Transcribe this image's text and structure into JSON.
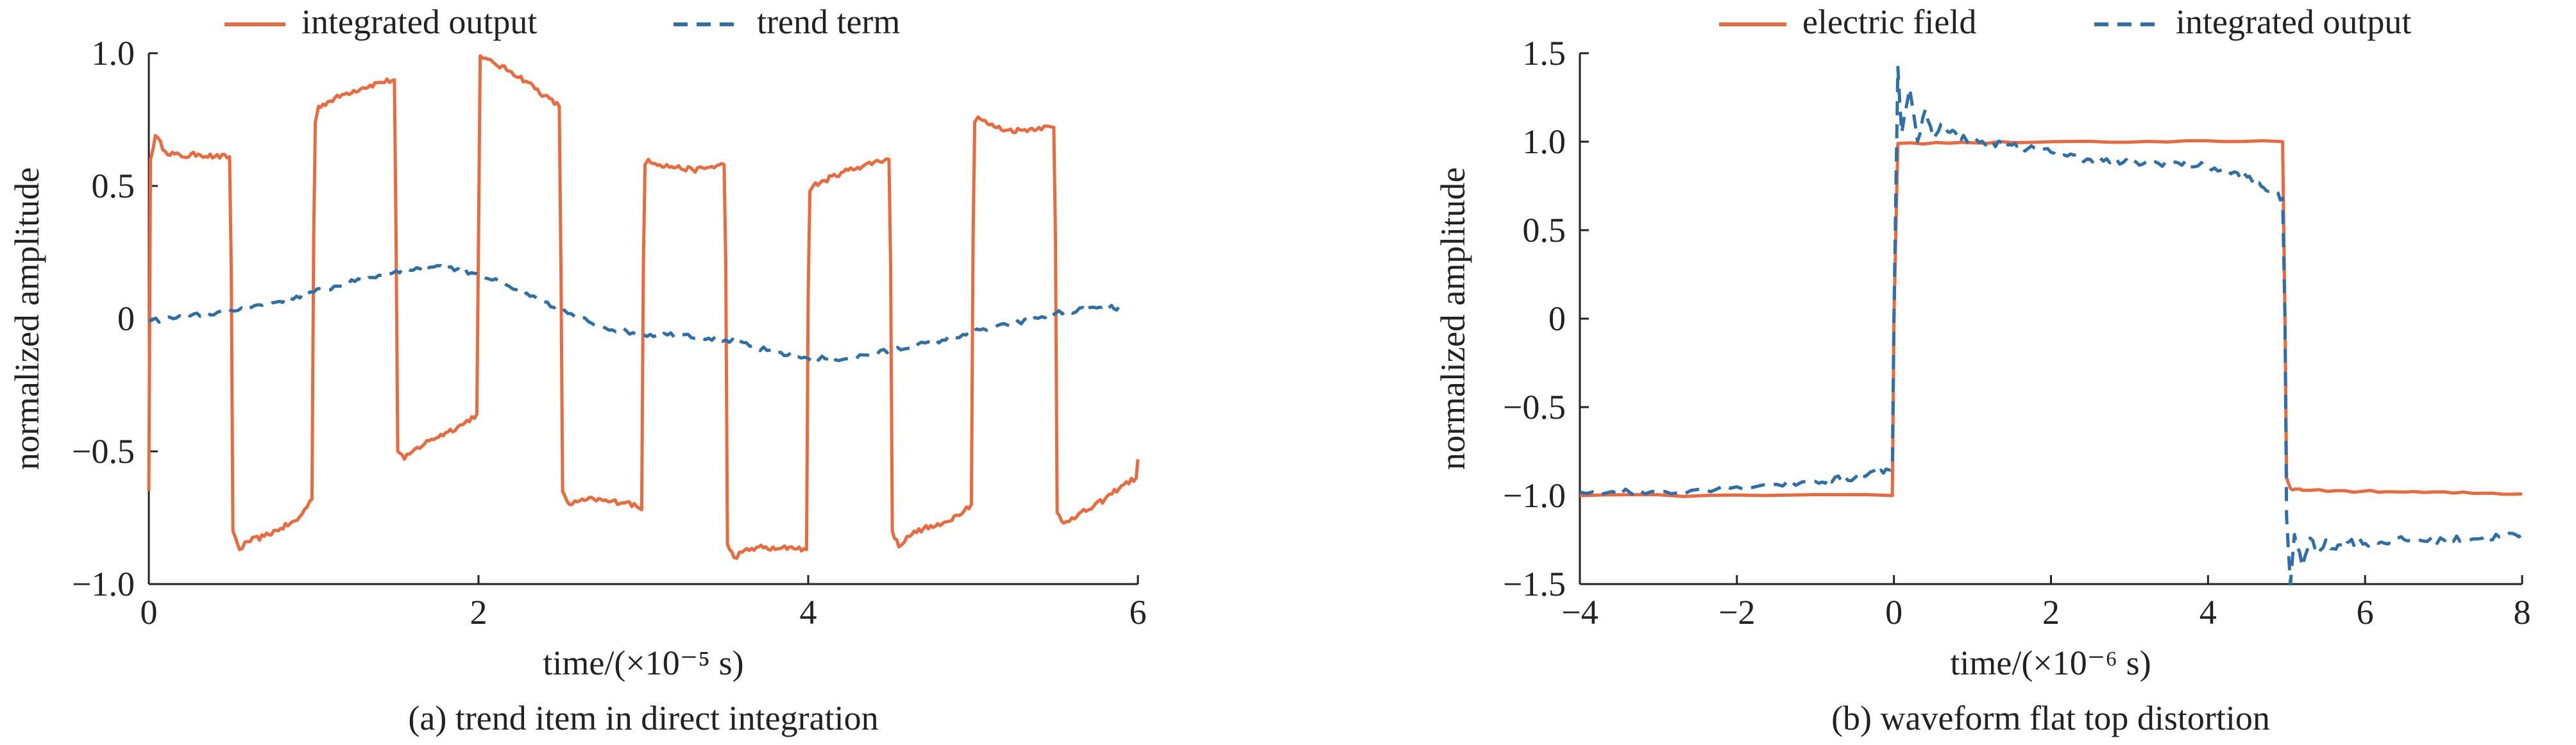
{
  "chart_data": [
    {
      "type": "line",
      "title": "(a) trend item in direct integration",
      "xlabel": "time/(×10⁻⁵ s)",
      "ylabel": "normalized amplitude",
      "xlim": [
        0,
        6
      ],
      "ylim": [
        -1.0,
        1.0
      ],
      "xticks": [
        0,
        2,
        4,
        6
      ],
      "xtick_labels": [
        "0",
        "2",
        "4",
        "6"
      ],
      "yticks": [
        1.0,
        0.5,
        0,
        -0.5,
        -1.0
      ],
      "ytick_labels": [
        "1.0",
        "0.5",
        "0",
        "−0.5",
        "−1.0"
      ],
      "grid": false,
      "legend": "top",
      "colors": {
        "integrated_output": "#ea6a3e",
        "trend_term": "#2d6fab"
      },
      "series": [
        {
          "name": "integrated output",
          "style": "solid",
          "x": [
            0,
            0.01,
            0.04,
            0.1,
            0.2,
            0.3,
            0.4,
            0.49,
            0.5,
            0.51,
            0.55,
            0.6,
            0.7,
            0.8,
            0.9,
            0.99,
            1.0,
            1.01,
            1.03,
            1.1,
            1.2,
            1.3,
            1.4,
            1.49,
            1.5,
            1.51,
            1.55,
            1.6,
            1.7,
            1.8,
            1.9,
            1.99,
            2.0,
            2.01,
            2.03,
            2.1,
            2.2,
            2.3,
            2.4,
            2.49,
            2.5,
            2.51,
            2.55,
            2.6,
            2.7,
            2.8,
            2.9,
            2.99,
            3.0,
            3.01,
            3.03,
            3.1,
            3.2,
            3.3,
            3.4,
            3.49,
            3.5,
            3.51,
            3.55,
            3.6,
            3.7,
            3.8,
            3.9,
            3.99,
            4.0,
            4.01,
            4.03,
            4.1,
            4.2,
            4.3,
            4.4,
            4.49,
            4.5,
            4.51,
            4.55,
            4.6,
            4.7,
            4.8,
            4.9,
            4.99,
            5.0,
            5.01,
            5.03,
            5.1,
            5.2,
            5.3,
            5.4,
            5.49,
            5.5,
            5.51,
            5.55,
            5.6,
            5.7,
            5.8,
            5.9,
            5.99,
            6.0
          ],
          "y": [
            -0.65,
            0.6,
            0.69,
            0.63,
            0.61,
            0.62,
            0.61,
            0.61,
            0.2,
            -0.8,
            -0.87,
            -0.84,
            -0.82,
            -0.79,
            -0.76,
            -0.68,
            0.3,
            0.74,
            0.8,
            0.82,
            0.85,
            0.87,
            0.89,
            0.9,
            0.3,
            -0.5,
            -0.53,
            -0.5,
            -0.46,
            -0.43,
            -0.4,
            -0.36,
            0.3,
            0.99,
            0.98,
            0.96,
            0.93,
            0.89,
            0.84,
            0.8,
            0.2,
            -0.65,
            -0.7,
            -0.69,
            -0.68,
            -0.69,
            -0.69,
            -0.72,
            0.2,
            0.58,
            0.6,
            0.58,
            0.57,
            0.56,
            0.57,
            0.58,
            0.2,
            -0.85,
            -0.9,
            -0.88,
            -0.86,
            -0.87,
            -0.86,
            -0.87,
            0.1,
            0.48,
            0.5,
            0.52,
            0.55,
            0.57,
            0.59,
            0.6,
            0.2,
            -0.8,
            -0.86,
            -0.82,
            -0.79,
            -0.78,
            -0.74,
            -0.7,
            0.3,
            0.74,
            0.76,
            0.73,
            0.71,
            0.71,
            0.72,
            0.72,
            0.3,
            -0.73,
            -0.77,
            -0.75,
            -0.72,
            -0.68,
            -0.63,
            -0.6,
            -0.53
          ]
        },
        {
          "name": "trend term",
          "style": "dashed",
          "x": [
            0,
            0.25,
            0.5,
            0.75,
            1.0,
            1.25,
            1.5,
            1.75,
            2.0,
            2.25,
            2.5,
            2.75,
            3.0,
            3.25,
            3.5,
            3.75,
            4.0,
            4.25,
            4.5,
            4.75,
            5.0,
            5.25,
            5.5,
            5.75,
            5.9
          ],
          "y": [
            -0.01,
            0.01,
            0.03,
            0.06,
            0.1,
            0.14,
            0.18,
            0.2,
            0.17,
            0.1,
            0.03,
            -0.03,
            -0.06,
            -0.06,
            -0.08,
            -0.12,
            -0.15,
            -0.15,
            -0.12,
            -0.09,
            -0.05,
            -0.02,
            0.02,
            0.04,
            0.04
          ]
        }
      ]
    },
    {
      "type": "line",
      "title": "(b) waveform flat top distortion",
      "xlabel": "time/(×10⁻⁶ s)",
      "ylabel": "normalized amplitude",
      "xlim": [
        -4,
        8
      ],
      "ylim": [
        -1.5,
        1.5
      ],
      "xticks": [
        -4,
        -2,
        0,
        2,
        4,
        6,
        8
      ],
      "xtick_labels": [
        "−4",
        "−2",
        "0",
        "2",
        "4",
        "6",
        "8"
      ],
      "yticks": [
        1.5,
        1.0,
        0.5,
        0,
        -0.5,
        -1.0,
        -1.5
      ],
      "ytick_labels": [
        "1.5",
        "1.0",
        "0.5",
        "0",
        "−0.5",
        "−1.0",
        "−1.5"
      ],
      "grid": false,
      "legend": "top",
      "colors": {
        "electric_field": "#ea6a3e",
        "integrated_output": "#2d6fab"
      },
      "series": [
        {
          "name": "electric field",
          "style": "solid",
          "x": [
            -4,
            -0.02,
            0.0,
            0.05,
            2.0,
            4.95,
            4.98,
            5.0,
            5.05,
            5.2,
            6.5,
            8.0
          ],
          "y": [
            -1.0,
            -1.0,
            0.0,
            0.99,
            1.0,
            1.0,
            0.0,
            -0.9,
            -0.96,
            -0.97,
            -0.98,
            -0.99
          ],
          "noise": 0.006,
          "color": "#ea6a3e"
        },
        {
          "name": "integrated output",
          "style": "dashed",
          "x": [
            -4,
            -3,
            -2,
            -1,
            -0.5,
            -0.1,
            -0.02,
            0.0,
            0.05,
            0.1,
            0.2,
            0.3,
            0.4,
            0.5,
            0.6,
            0.8,
            1.0,
            1.5,
            2.0,
            2.5,
            3.0,
            3.5,
            4.0,
            4.5,
            4.8,
            4.95,
            4.98,
            5.0,
            5.05,
            5.1,
            5.2,
            5.3,
            5.4,
            5.5,
            5.6,
            5.8,
            6.0,
            6.5,
            7.0,
            7.5,
            8.0
          ],
          "y": [
            -0.98,
            -0.98,
            -0.95,
            -0.92,
            -0.9,
            -0.85,
            -0.84,
            0.0,
            1.42,
            1.05,
            1.3,
            1.0,
            1.18,
            1.02,
            1.1,
            1.04,
            1.0,
            0.98,
            0.94,
            0.9,
            0.88,
            0.88,
            0.86,
            0.8,
            0.72,
            0.68,
            0.0,
            -1.12,
            -1.5,
            -1.22,
            -1.4,
            -1.24,
            -1.33,
            -1.25,
            -1.3,
            -1.26,
            -1.27,
            -1.25,
            -1.25,
            -1.24,
            -1.22
          ],
          "noise": 0.02,
          "color": "#2d6fab"
        }
      ]
    }
  ]
}
